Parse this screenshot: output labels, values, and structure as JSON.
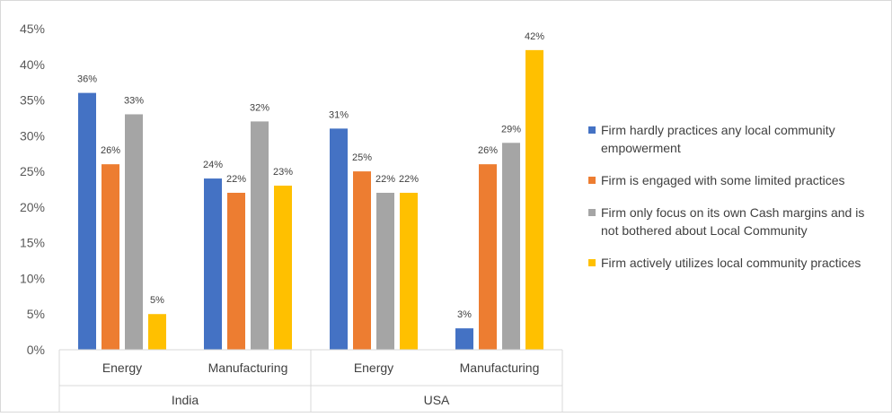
{
  "chart_data": {
    "type": "bar",
    "groups": [
      {
        "name": "India",
        "categories": [
          "Energy",
          "Manufacturing"
        ]
      },
      {
        "name": "USA",
        "categories": [
          "Energy",
          "Manufacturing"
        ]
      }
    ],
    "categories": [
      "Energy",
      "Manufacturing",
      "Energy",
      "Manufacturing"
    ],
    "series": [
      {
        "name": "Firm hardly practices any local community empowerment",
        "color": "#4472C4",
        "values": [
          36,
          24,
          31,
          3
        ],
        "labels": [
          "36%",
          "24%",
          "31%",
          "3%"
        ]
      },
      {
        "name": "Firm is engaged with some limited practices",
        "color": "#ED7D31",
        "values": [
          26,
          22,
          25,
          26
        ],
        "labels": [
          "26%",
          "22%",
          "25%",
          "26%"
        ]
      },
      {
        "name": "Firm only focus on its own Cash margins and is not bothered about Local Community",
        "color": "#A5A5A5",
        "values": [
          33,
          32,
          22,
          29
        ],
        "labels": [
          "33%",
          "32%",
          "22%",
          "29%"
        ]
      },
      {
        "name": "Firm actively utilizes local community practices",
        "color": "#FFC000",
        "values": [
          5,
          23,
          22,
          42
        ],
        "labels": [
          "5%",
          "23%",
          "22%",
          "42%"
        ]
      }
    ],
    "yticks": [
      "0%",
      "5%",
      "10%",
      "15%",
      "20%",
      "25%",
      "30%",
      "35%",
      "40%",
      "45%"
    ],
    "ylim": [
      0,
      45
    ],
    "grid": false,
    "legend_position": "right",
    "title": "",
    "xlabel": "",
    "ylabel": ""
  }
}
